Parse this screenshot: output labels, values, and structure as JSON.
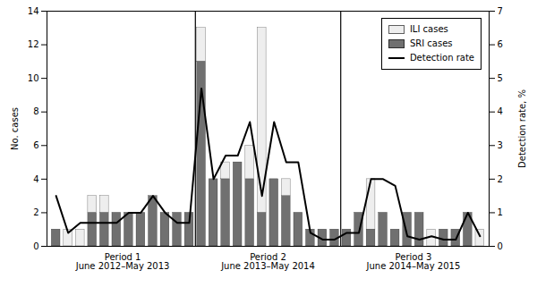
{
  "chart_data": {
    "type": "bar",
    "stacked": true,
    "x": [
      1,
      2,
      3,
      4,
      5,
      6,
      7,
      8,
      9,
      10,
      11,
      12,
      13,
      14,
      15,
      16,
      17,
      18,
      19,
      20,
      21,
      22,
      23,
      24,
      25,
      26,
      27,
      28,
      29,
      30,
      31,
      32,
      33,
      34,
      35,
      36
    ],
    "xlim": [
      0.25,
      36.75
    ],
    "xticks": [],
    "ylabel": "No. cases",
    "ylim": [
      0,
      14
    ],
    "yticks": [
      0,
      2,
      4,
      6,
      8,
      10,
      12,
      14
    ],
    "y2label": "Detection rate, %",
    "y2lim": [
      0,
      7
    ],
    "y2ticks": [
      0,
      1,
      2,
      3,
      4,
      5,
      6,
      7
    ],
    "tick_labels": "y",
    "legend": "upper right",
    "series": [
      {
        "name": "ILI cases",
        "type": "bar",
        "color": "#eeeeee",
        "values": [
          0,
          1,
          1,
          1,
          1,
          0,
          0,
          0,
          0,
          0,
          0,
          0,
          2,
          0,
          1,
          0,
          2,
          11,
          0,
          1,
          0,
          0,
          0,
          0,
          0,
          0,
          3,
          0,
          0,
          0,
          0,
          1,
          0,
          0,
          0,
          1
        ]
      },
      {
        "name": "SRI cases",
        "type": "bar",
        "color": "#707070",
        "values": [
          1,
          0,
          0,
          2,
          2,
          2,
          2,
          2,
          3,
          2,
          2,
          2,
          11,
          4,
          4,
          5,
          4,
          2,
          4,
          3,
          2,
          1,
          1,
          1,
          1,
          2,
          1,
          2,
          1,
          2,
          2,
          0,
          1,
          1,
          2,
          0
        ]
      },
      {
        "name": "Detection rate",
        "type": "line",
        "axis": "y2",
        "color": "#000000",
        "values": [
          1.5,
          0.4,
          0.7,
          0.7,
          0.7,
          0.7,
          1.0,
          1.0,
          1.5,
          1.0,
          0.7,
          0.7,
          4.7,
          2.0,
          2.7,
          2.7,
          3.7,
          1.5,
          3.7,
          2.5,
          2.5,
          0.4,
          0.2,
          0.2,
          0.4,
          0.4,
          2.0,
          2.0,
          1.8,
          0.3,
          0.2,
          0.3,
          0.2,
          0.2,
          1.0,
          0.3
        ]
      }
    ],
    "period_boundaries": [
      12.5,
      24.5
    ],
    "annotations": [
      {
        "text": "Period 1\nJune 2012–May 2013",
        "x": 6.5
      },
      {
        "text": "Period 2\nJune 2013–May 2014",
        "x": 18.5
      },
      {
        "text": "Period 3\nJune 2014–May 2015",
        "x": 30.5
      }
    ]
  }
}
